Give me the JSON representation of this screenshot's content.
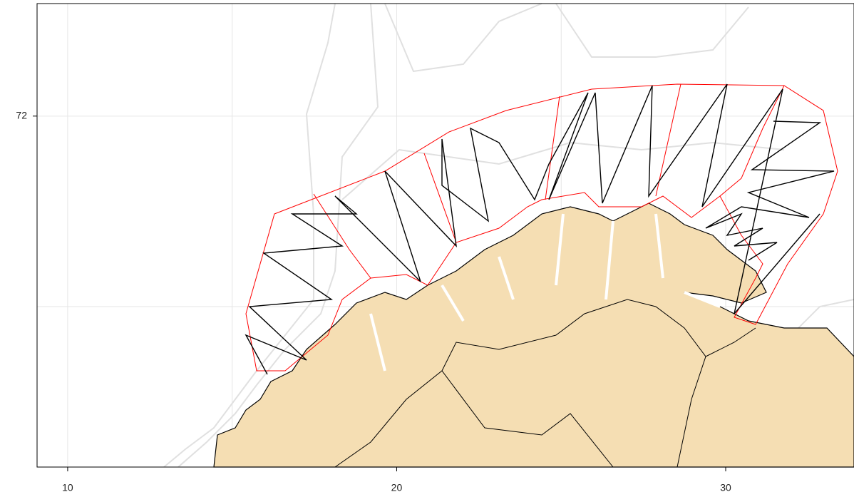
{
  "map": {
    "xticks": [
      10,
      20,
      30
    ],
    "yticks": [
      72
    ],
    "xlim": [
      9.07,
      33.9
    ],
    "ylim": [
      70.16,
      72.59
    ]
  }
}
